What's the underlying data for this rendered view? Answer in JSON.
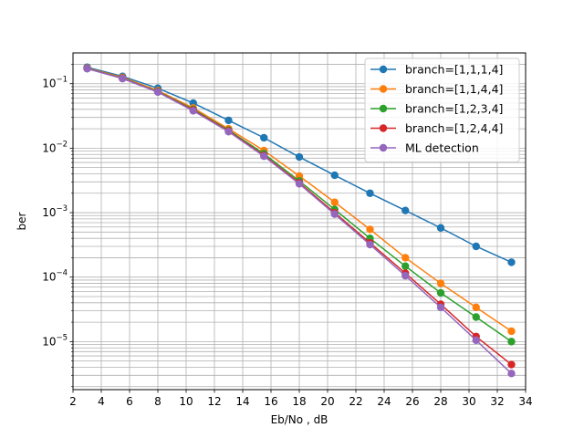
{
  "chart_data": {
    "type": "line",
    "xlabel": "Eb/No , dB",
    "ylabel": "ber",
    "xlim": [
      2,
      34
    ],
    "ylim": [
      1.8e-06,
      0.3
    ],
    "y_scale": "log",
    "grid": true,
    "legend_position": "top-right",
    "x_ticks": [
      2,
      4,
      6,
      8,
      10,
      12,
      14,
      16,
      18,
      20,
      22,
      24,
      26,
      28,
      30,
      32,
      34
    ],
    "y_tick_labels": [
      {
        "mantissa": "10",
        "exp": "−5",
        "value": 1e-05
      },
      {
        "mantissa": "10",
        "exp": "−4",
        "value": 0.0001
      },
      {
        "mantissa": "10",
        "exp": "−3",
        "value": 0.001
      },
      {
        "mantissa": "10",
        "exp": "−2",
        "value": 0.01
      },
      {
        "mantissa": "10",
        "exp": "−1",
        "value": 0.1
      }
    ],
    "x": [
      3.0,
      5.5,
      8.0,
      10.5,
      13.0,
      15.5,
      18.0,
      20.5,
      23.0,
      25.5,
      28.0,
      30.5,
      33.0
    ],
    "series": [
      {
        "name": "branch=[1,1,1,4]",
        "color": "#1f77b4",
        "values": [
          0.18,
          0.13,
          0.085,
          0.05,
          0.027,
          0.0145,
          0.0073,
          0.0038,
          0.002,
          0.00108,
          0.00058,
          0.0003,
          0.00017
        ]
      },
      {
        "name": "branch=[1,1,4,4]",
        "color": "#ff7f0e",
        "values": [
          0.175,
          0.125,
          0.078,
          0.042,
          0.02,
          0.0092,
          0.0037,
          0.00145,
          0.00055,
          0.0002,
          8e-05,
          3.4e-05,
          1.45e-05
        ]
      },
      {
        "name": "branch=[1,2,3,4]",
        "color": "#2ca02c",
        "values": [
          0.173,
          0.122,
          0.076,
          0.04,
          0.019,
          0.0082,
          0.0031,
          0.00112,
          0.0004,
          0.000148,
          5.7e-05,
          2.4e-05,
          1e-05
        ]
      },
      {
        "name": "branch=[1,2,4,4]",
        "color": "#d62728",
        "values": [
          0.172,
          0.121,
          0.075,
          0.039,
          0.0185,
          0.0077,
          0.0029,
          0.001,
          0.00034,
          0.000115,
          3.8e-05,
          1.2e-05,
          4.4e-06
        ]
      },
      {
        "name": "ML detection",
        "color": "#9467bd",
        "values": [
          0.171,
          0.12,
          0.074,
          0.038,
          0.018,
          0.0075,
          0.0028,
          0.00095,
          0.00032,
          0.000105,
          3.4e-05,
          1.05e-05,
          3.2e-06
        ]
      }
    ]
  }
}
